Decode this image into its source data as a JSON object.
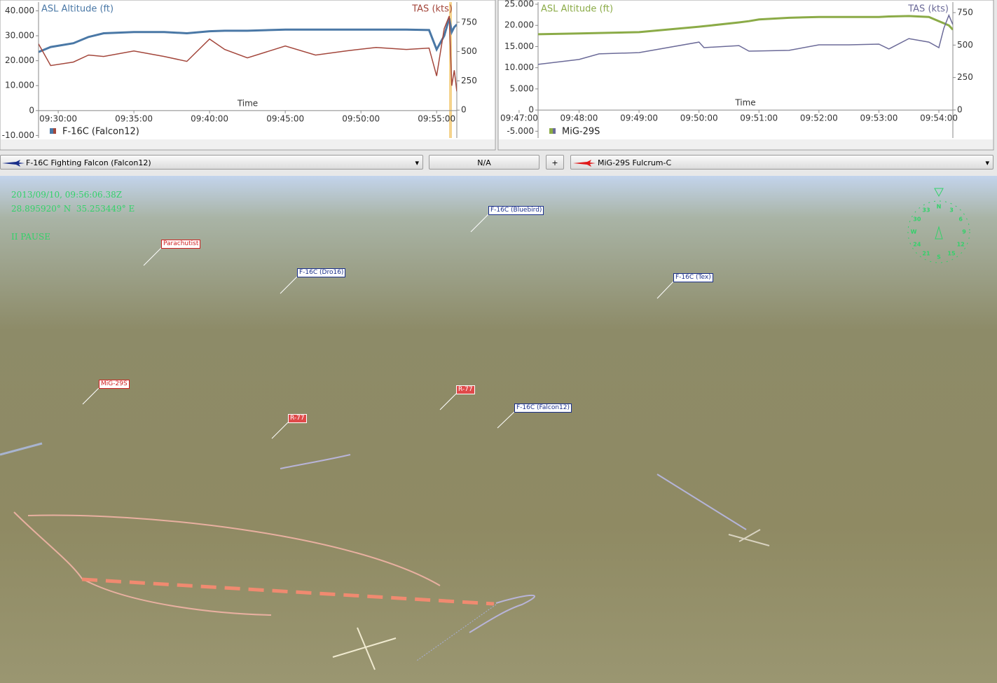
{
  "chart_data": [
    {
      "type": "line",
      "xlabel": "Time",
      "entity": "F-16C (Falcon12)",
      "x": [
        "09:28:42",
        "09:29:30",
        "09:31:00",
        "09:32:00",
        "09:33:00",
        "09:35:00",
        "09:37:00",
        "09:38:30",
        "09:40:00",
        "09:41:00",
        "09:42:30",
        "09:45:00",
        "09:47:00",
        "09:49:00",
        "09:51:00",
        "09:53:00",
        "09:54:30",
        "09:55:00",
        "09:55:30",
        "09:55:50",
        "09:56:00",
        "09:56:10",
        "09:56:20"
      ],
      "series": [
        {
          "name": "ASL Altitude (ft)",
          "color": "#4a78a6",
          "axis": "y",
          "values": [
            23500,
            25500,
            27000,
            29500,
            31000,
            31500,
            31500,
            31000,
            31800,
            32000,
            32000,
            32500,
            32500,
            32500,
            32500,
            32500,
            32300,
            24500,
            30000,
            37000,
            31500,
            33500,
            34500
          ]
        },
        {
          "name": "TAS (kts)",
          "color": "#a3463b",
          "axis": "y2",
          "values": [
            565,
            380,
            410,
            470,
            458,
            505,
            458,
            416,
            607,
            518,
            446,
            547,
            470,
            505,
            535,
            518,
            530,
            292,
            696,
            803,
            208,
            340,
            160
          ]
        }
      ],
      "xlim": [
        "09:28:42",
        "09:56:20"
      ],
      "xticks": [
        "09:30:00",
        "09:35:00",
        "09:40:00",
        "09:45:00",
        "09:50:00",
        "09:55:00"
      ],
      "ylim": [
        -11000,
        43500
      ],
      "yticks": [
        {
          "value": -10000,
          "label": "-10.000"
        },
        0,
        {
          "value": 10000,
          "label": "10.000"
        },
        {
          "value": 20000,
          "label": "20.000"
        },
        {
          "value": 30000,
          "label": "30.000"
        },
        {
          "value": 40000,
          "label": "40.000"
        }
      ],
      "y2lim": [
        -238,
        922
      ],
      "y2ticks": [
        0,
        250,
        500,
        750
      ]
    },
    {
      "type": "line",
      "xlabel": "Time",
      "entity": "MiG-29S",
      "x": [
        "09:47:19",
        "09:48:00",
        "09:48:20",
        "09:49:00",
        "09:50:00",
        "09:50:05",
        "09:50:40",
        "09:50:50",
        "09:51:00",
        "09:51:30",
        "09:52:00",
        "09:52:30",
        "09:53:00",
        "09:53:10",
        "09:53:30",
        "09:53:50",
        "09:54:00",
        "09:54:05",
        "09:54:10",
        "09:54:14"
      ],
      "series": [
        {
          "name": "ASL Altitude (ft)",
          "color": "#8bab47",
          "axis": "y",
          "values": [
            17900,
            18100,
            18200,
            18400,
            19700,
            19800,
            20700,
            21000,
            21400,
            21800,
            22000,
            22000,
            22000,
            22100,
            22200,
            22000,
            21000,
            20500,
            20000,
            19000
          ]
        },
        {
          "name": "TAS (kts)",
          "color": "#6b6a98",
          "axis": "y2",
          "values": [
            351,
            389,
            432,
            442,
            523,
            480,
            496,
            453,
            455,
            459,
            502,
            502,
            507,
            470,
            550,
            523,
            480,
            631,
            729,
            658
          ]
        }
      ],
      "xlim": [
        "09:47:19",
        "09:54:14"
      ],
      "xticks": [
        "09:47:00",
        "09:48:00",
        "09:49:00",
        "09:50:00",
        "09:51:00",
        "09:52:00",
        "09:53:00",
        "09:54:00"
      ],
      "ylim": [
        -6600,
        25500
      ],
      "yticks": [
        {
          "value": -5000,
          "label": "-5.000"
        },
        0,
        {
          "value": 5000,
          "label": "5.000"
        },
        {
          "value": 10000,
          "label": "10.000"
        },
        {
          "value": 15000,
          "label": "15.000"
        },
        {
          "value": 20000,
          "label": "20.000"
        },
        {
          "value": 25000,
          "label": "25.000"
        }
      ],
      "y2lim": [
        -216,
        831
      ],
      "y2ticks": [
        0,
        250,
        500,
        750
      ]
    }
  ],
  "toolbar": {
    "left_aircraft": "F-16C Fighting Falcon (Falcon12)",
    "center": "N/A",
    "plus": "+",
    "right_aircraft": "MiG-29S Fulcrum-C"
  },
  "view": {
    "timestamp": "2013/09/10, 09:56:06.38Z",
    "coords": "28.895920° N  35.253449° E",
    "status": "II PAUSE",
    "labels": [
      "F-16C (Bluebird)",
      "Parachutist",
      "F-16C (Dro16)",
      "F-16C (Tex)",
      "MiG-29S",
      "R-77",
      "R-77",
      "F-16C (Falcon12)"
    ],
    "compass": [
      "N",
      "3",
      "6",
      "9",
      "12",
      "15",
      "S",
      "21",
      "24",
      "W",
      "30",
      "33"
    ]
  }
}
